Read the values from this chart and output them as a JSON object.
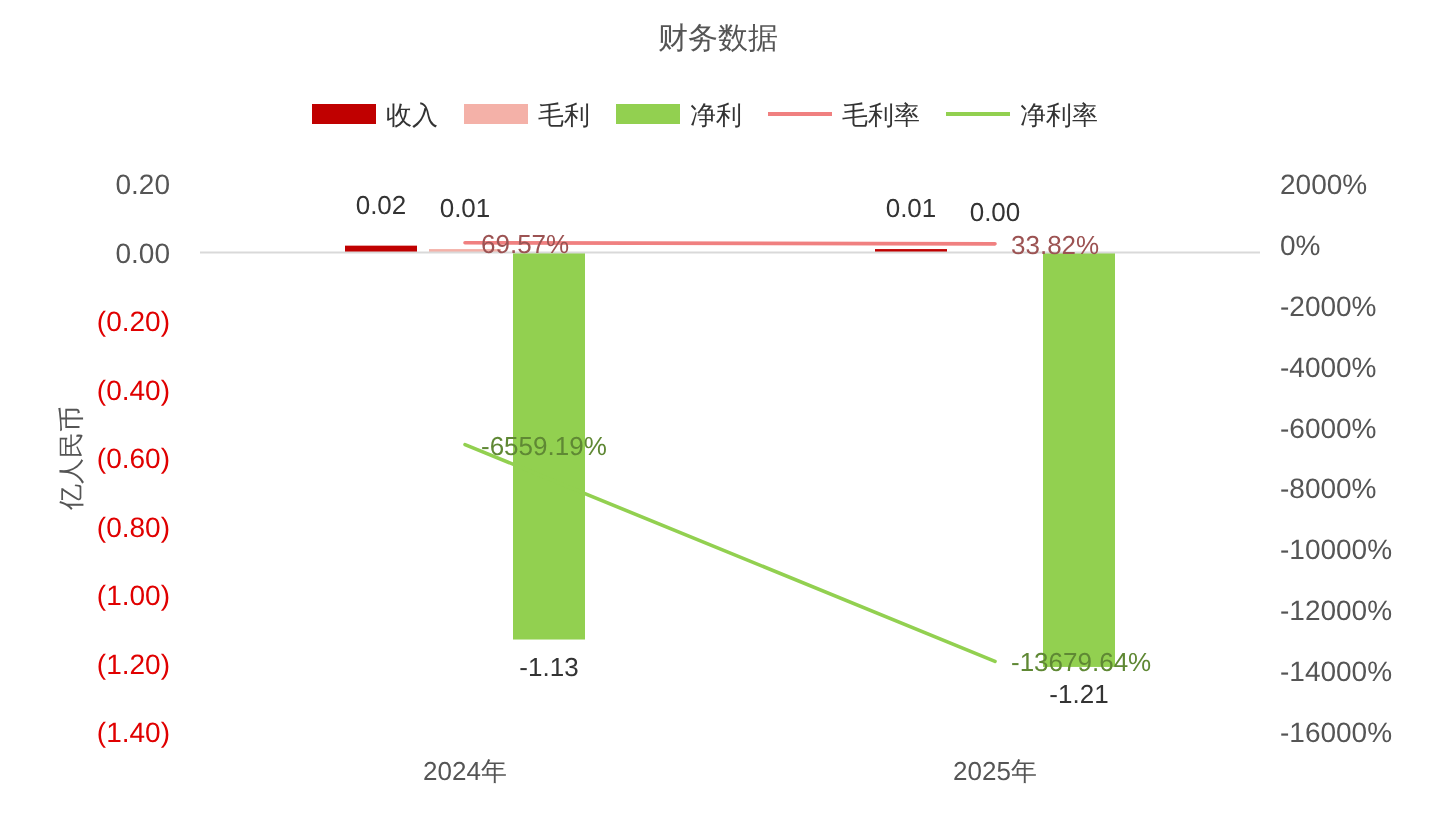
{
  "chart_data": {
    "type": "bar",
    "title": "财务数据",
    "ylabel": "亿人民币",
    "categories": [
      "2024年",
      "2025年"
    ],
    "series": [
      {
        "name": "收入",
        "color": "#c00000",
        "values": [
          0.02,
          0.01
        ],
        "value_labels": [
          "0.02",
          "0.01"
        ]
      },
      {
        "name": "毛利",
        "color": "#f4b1a8",
        "values": [
          0.01,
          0.0
        ],
        "value_labels": [
          "0.01",
          "0.00"
        ]
      },
      {
        "name": "净利",
        "color": "#92d050",
        "values": [
          -1.13,
          -1.21
        ],
        "value_labels": [
          "-1.13",
          "-1.21"
        ]
      },
      {
        "name": "毛利率",
        "type": "line",
        "axis": "y2",
        "color": "#f08080",
        "values": [
          69.57,
          33.82
        ],
        "value_labels": [
          "69.57%",
          "33.82%"
        ]
      },
      {
        "name": "净利率",
        "type": "line",
        "axis": "y2",
        "color": "#92d050",
        "values": [
          -6559.19,
          -13679.64
        ],
        "value_labels": [
          "-6559.19%",
          "-13679.64%"
        ]
      }
    ],
    "ylim": [
      -1.4,
      0.2
    ],
    "yticks": [
      {
        "value": 0.2,
        "label": "0.20"
      },
      {
        "value": 0,
        "label": "0.00"
      },
      {
        "value": -0.2,
        "label": "(0.20)"
      },
      {
        "value": -0.4,
        "label": "(0.40)"
      },
      {
        "value": -0.6,
        "label": "(0.60)"
      },
      {
        "value": -0.8,
        "label": "(0.80)"
      },
      {
        "value": -1.0,
        "label": "(1.00)"
      },
      {
        "value": -1.2,
        "label": "(1.20)"
      },
      {
        "value": -1.4,
        "label": "(1.40)"
      }
    ],
    "y2lim": [
      -16000,
      2000
    ],
    "y2ticks": [
      {
        "value": 2000,
        "label": "2000%"
      },
      {
        "value": 0,
        "label": "0%"
      },
      {
        "value": -2000,
        "label": "-2000%"
      },
      {
        "value": -4000,
        "label": "-4000%"
      },
      {
        "value": -6000,
        "label": "-6000%"
      },
      {
        "value": -8000,
        "label": "-8000%"
      },
      {
        "value": -10000,
        "label": "-10000%"
      },
      {
        "value": -12000,
        "label": "-12000%"
      },
      {
        "value": -14000,
        "label": "-14000%"
      },
      {
        "value": -16000,
        "label": "-16000%"
      }
    ],
    "legend": "top"
  }
}
